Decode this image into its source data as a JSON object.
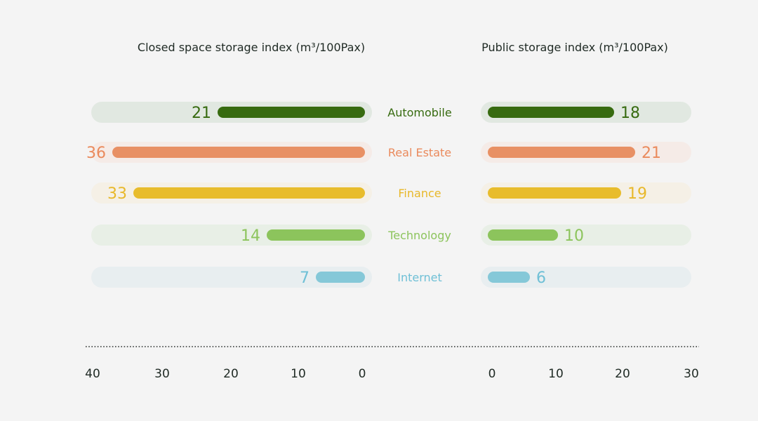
{
  "chart_data": {
    "type": "bar",
    "categories": [
      "Automobile",
      "Real Estate",
      "Finance",
      "Technology",
      "Internet"
    ],
    "colors": [
      "#376b10",
      "#e89064",
      "#e8bc2c",
      "#8cc45c",
      "#85c8d8"
    ],
    "track_colors": [
      "#e1e8e1",
      "#f5ebe7",
      "#f5f0e6",
      "#e8efe6",
      "#e8eef0"
    ],
    "label_colors": [
      "#376b10",
      "#ea8a5c",
      "#e8b82a",
      "#8cc45c",
      "#6fc0d6"
    ],
    "series": [
      {
        "title": "Closed space storage index (m³/100Pax)",
        "values": [
          21,
          36,
          33,
          14,
          7
        ],
        "xlim": [
          40,
          0
        ],
        "ticks": [
          "40",
          "30",
          "20",
          "10",
          "0"
        ]
      },
      {
        "title": "Public storage index (m³/100Pax)",
        "values": [
          18,
          21,
          19,
          10,
          6
        ],
        "xlim": [
          0,
          30
        ],
        "ticks": [
          "0",
          "10",
          "20",
          "30"
        ]
      }
    ]
  }
}
